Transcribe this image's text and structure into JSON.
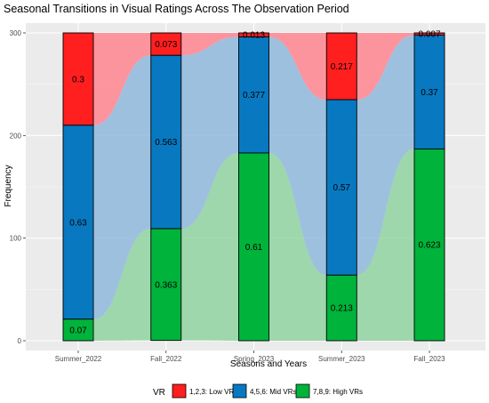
{
  "chart_data": {
    "type": "bar",
    "title": "Seasonal Transitions in Visual Ratings Across The Observation Period",
    "xlabel": "Seasons and Years",
    "ylabel": "Frequency",
    "ylim": [
      0,
      300
    ],
    "yticks": [
      0,
      100,
      200,
      300
    ],
    "categories": [
      "Summer_2022",
      "Fall_2022",
      "Spring_2023",
      "Summer_2023",
      "Fall_2023"
    ],
    "total": 300,
    "series": [
      {
        "name": "1,2,3: Low VRs",
        "key": "low",
        "color": "#ff1f1f",
        "flow_color": "#ff8591",
        "values": [
          0.3,
          0.073,
          0.013,
          0.217,
          0.007
        ],
        "labels": [
          "0.3",
          "0.073",
          "0.013",
          "0.217",
          "0.007"
        ]
      },
      {
        "name": "4,5,6: Mid VRs",
        "key": "mid",
        "color": "#0879c1",
        "flow_color": "#8fb9dd",
        "values": [
          0.63,
          0.563,
          0.377,
          0.57,
          0.37
        ],
        "labels": [
          "0.63",
          "0.563",
          "0.377",
          "0.57",
          "0.37"
        ]
      },
      {
        "name": "7,8,9: High VRs",
        "key": "high",
        "color": "#00b33b",
        "flow_color": "#8fd3a0",
        "values": [
          0.07,
          0.363,
          0.61,
          0.213,
          0.623
        ],
        "labels": [
          "0.07",
          "0.363",
          "0.61",
          "0.213",
          "0.623"
        ]
      }
    ],
    "legend": {
      "title": "VR",
      "position": "bottom"
    },
    "grid": true
  }
}
